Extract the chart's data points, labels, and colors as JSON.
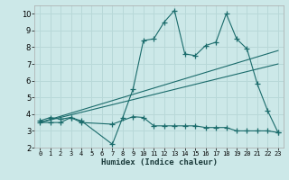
{
  "xlabel": "Humidex (Indice chaleur)",
  "ylabel": "",
  "bg_color": "#cce8e8",
  "grid_color": "#b8d8d8",
  "line_color": "#1a6b6b",
  "xlim": [
    -0.5,
    23.5
  ],
  "ylim": [
    2,
    10.5
  ],
  "xticks": [
    0,
    1,
    2,
    3,
    4,
    5,
    6,
    7,
    8,
    9,
    10,
    11,
    12,
    13,
    14,
    15,
    16,
    17,
    18,
    19,
    20,
    21,
    22,
    23
  ],
  "yticks": [
    2,
    3,
    4,
    5,
    6,
    7,
    8,
    9,
    10
  ],
  "series1_x": [
    0,
    1,
    2,
    3,
    4,
    7,
    8,
    9,
    10,
    11,
    12,
    13,
    14,
    15,
    16,
    17,
    18,
    19,
    20,
    21,
    22,
    23
  ],
  "series1_y": [
    3.6,
    3.8,
    3.7,
    3.8,
    3.6,
    2.2,
    3.8,
    5.5,
    8.4,
    8.5,
    9.5,
    10.2,
    7.6,
    7.5,
    8.1,
    8.3,
    10.0,
    8.5,
    7.9,
    5.8,
    4.2,
    2.9
  ],
  "series2_x": [
    0,
    1,
    2,
    3,
    4,
    7,
    9,
    10,
    11,
    12,
    13,
    14,
    15,
    16,
    17,
    18,
    19,
    20,
    21,
    22,
    23
  ],
  "series2_y": [
    3.5,
    3.5,
    3.5,
    3.8,
    3.5,
    3.4,
    3.85,
    3.8,
    3.3,
    3.3,
    3.3,
    3.3,
    3.3,
    3.2,
    3.2,
    3.2,
    3.0,
    3.0,
    3.0,
    3.0,
    2.9
  ],
  "trend1_x": [
    0,
    23
  ],
  "trend1_y": [
    3.5,
    7.8
  ],
  "trend2_x": [
    0,
    23
  ],
  "trend2_y": [
    3.5,
    7.0
  ]
}
